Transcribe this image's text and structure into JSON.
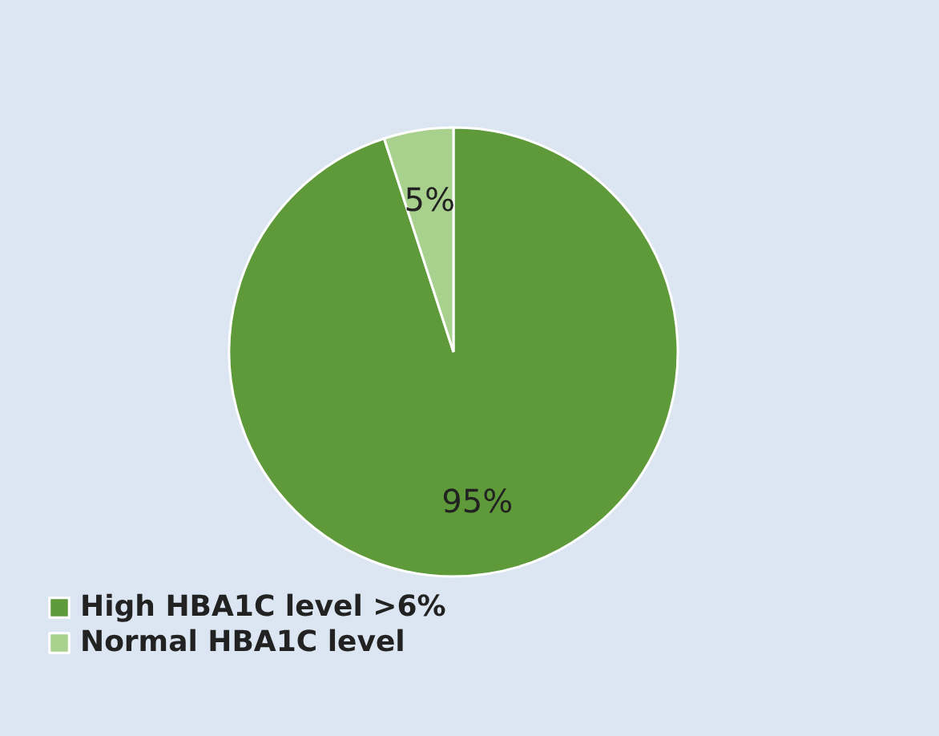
{
  "chart_data": {
    "type": "pie",
    "categories": [
      "High HBA1C level >6%",
      "Normal HBA1C level"
    ],
    "values": [
      95,
      5
    ],
    "colors": [
      "#5f9a3a",
      "#a9d18e"
    ],
    "value_labels": [
      "95%",
      "5%"
    ],
    "legend": "bottom left"
  }
}
